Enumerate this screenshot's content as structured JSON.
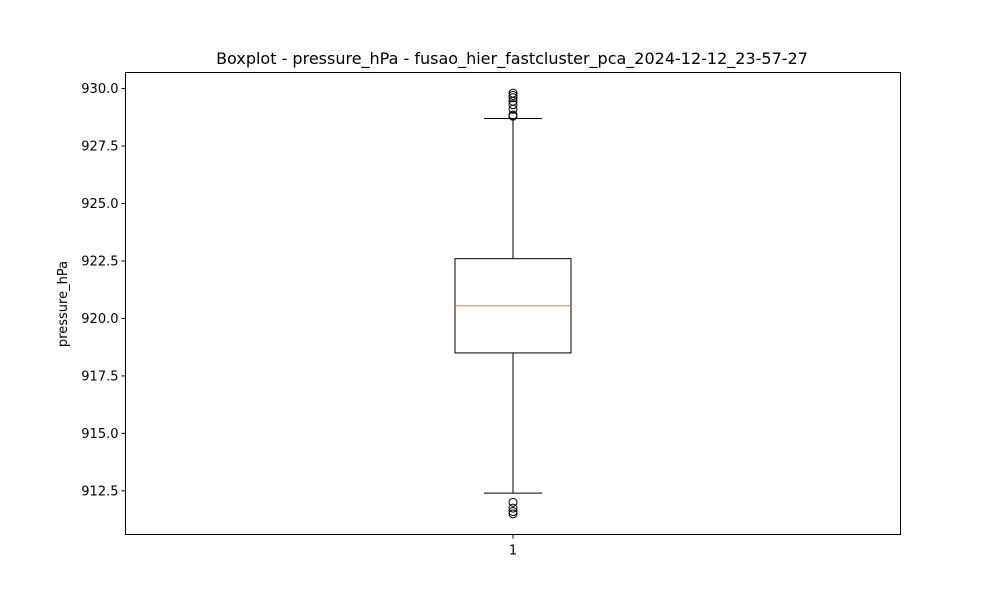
{
  "chart_data": {
    "type": "boxplot",
    "title": "Boxplot - pressure_hPa - fusao_hier_fastcluster_pca_2024-12-12_23-57-27",
    "xlabel": "",
    "ylabel": "pressure_hPa",
    "categories": [
      "1"
    ],
    "ylim": [
      910.6,
      930.7
    ],
    "yticks": [
      "912.5",
      "915.0",
      "917.5",
      "920.0",
      "922.5",
      "925.0",
      "927.5",
      "930.0"
    ],
    "grid": false,
    "boxes": [
      {
        "label": "1",
        "whisker_low": 912.4,
        "q1": 918.5,
        "median": 920.55,
        "q3": 922.6,
        "whisker_high": 928.7,
        "outliers_high": [
          928.8,
          928.85,
          929.1,
          929.3,
          929.45,
          929.6,
          929.7,
          929.8
        ],
        "outliers_low": [
          912.0,
          911.75,
          911.6,
          911.5
        ]
      }
    ],
    "colors": {
      "box": "#000000",
      "median": "#ff7f0e",
      "outlier": "#000000"
    }
  }
}
